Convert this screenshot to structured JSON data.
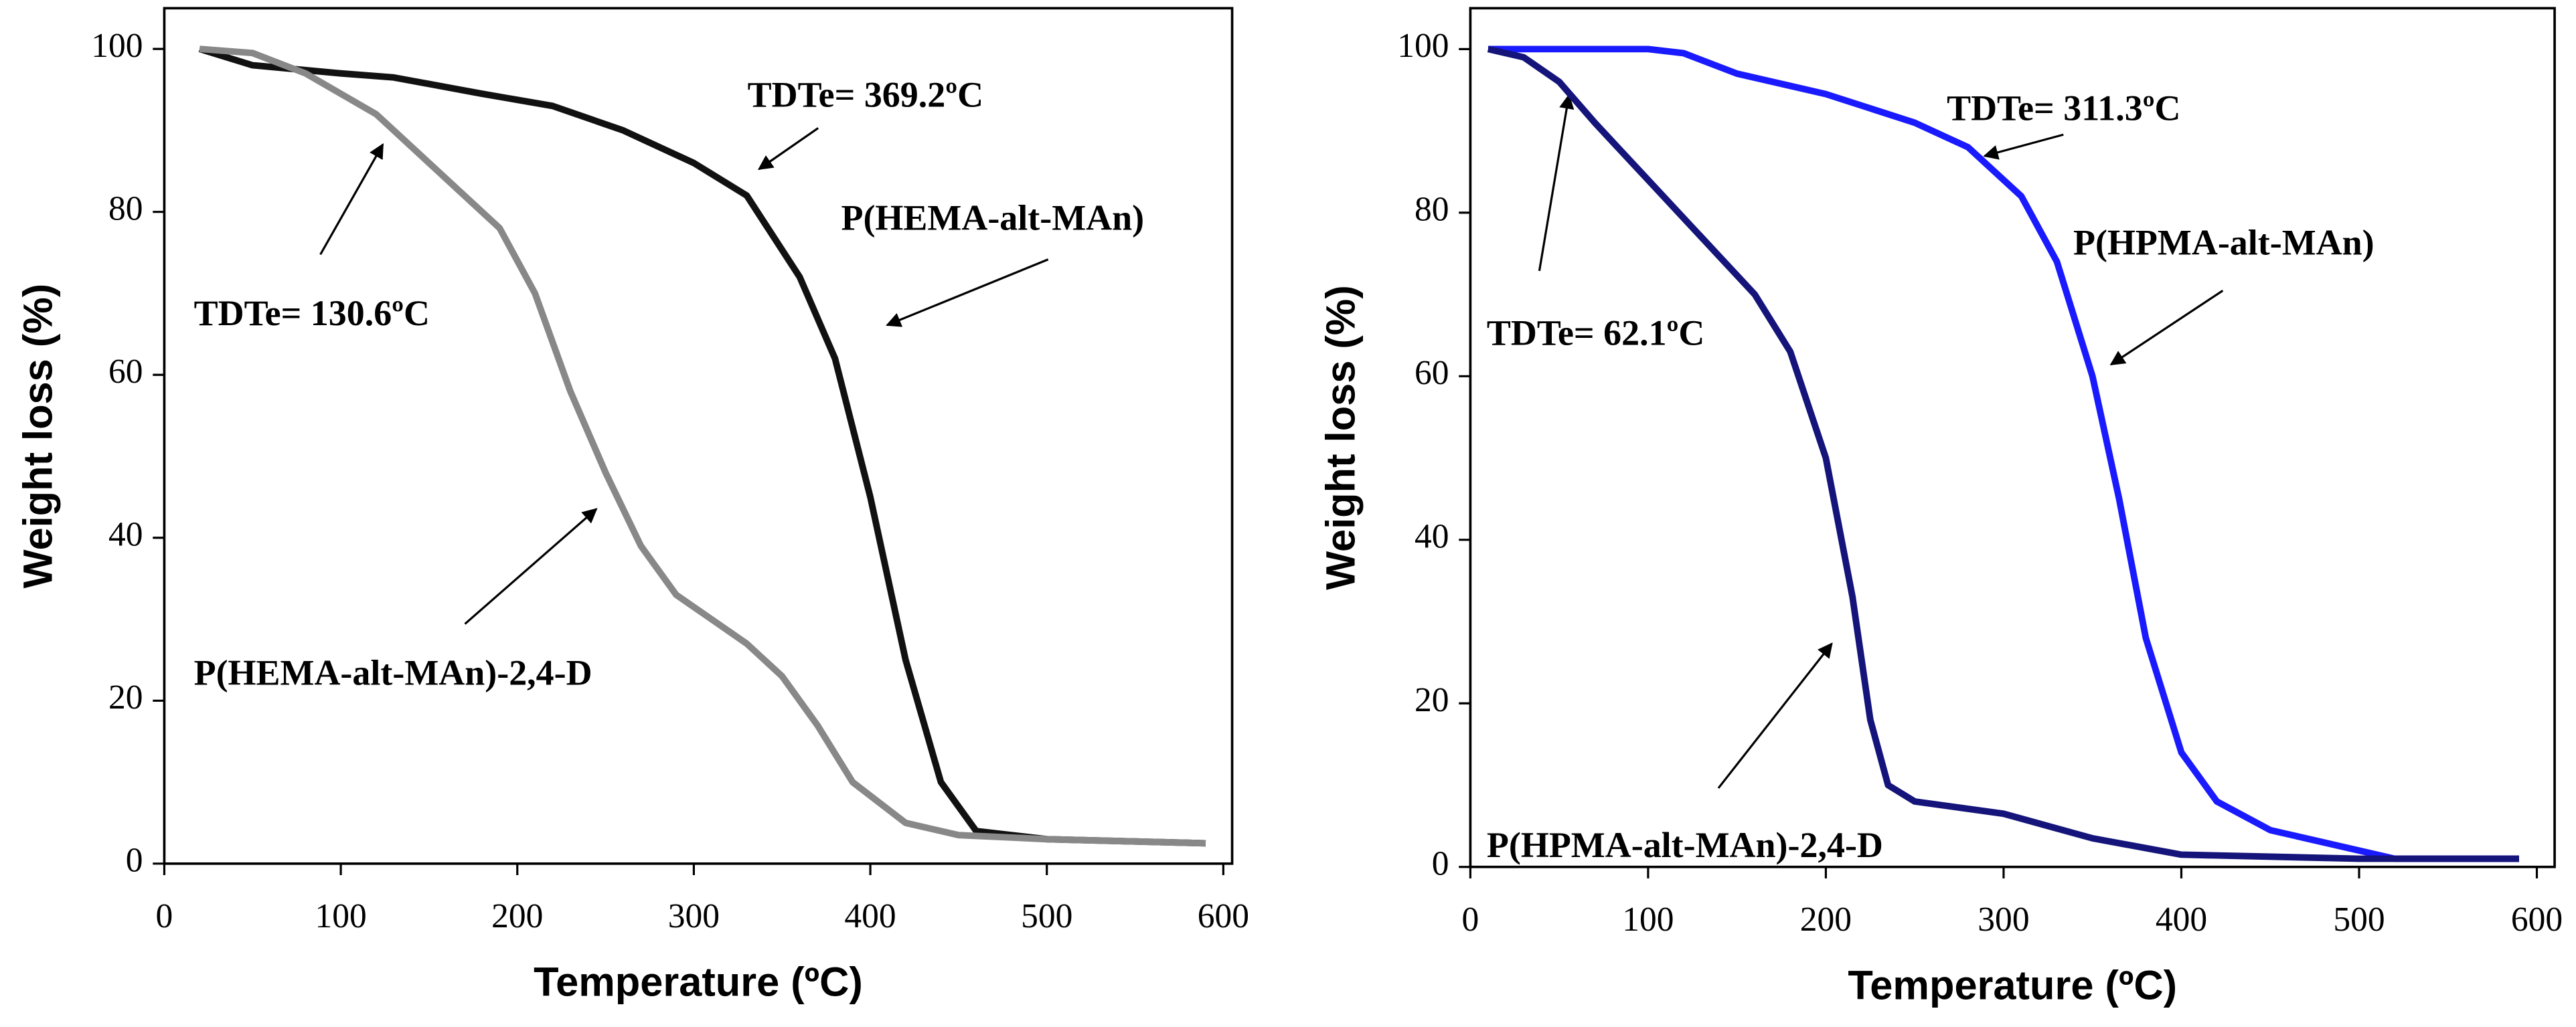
{
  "chart_data": [
    {
      "type": "line",
      "xlabel": "Temperature (ºC)",
      "ylabel": "Weight loss (%)",
      "xlim": [
        0,
        605
      ],
      "ylim": [
        0,
        105
      ],
      "xticks": [
        0,
        100,
        200,
        300,
        400,
        500,
        600
      ],
      "yticks": [
        0,
        20,
        40,
        60,
        80,
        100
      ],
      "series": [
        {
          "name": "P(HEMA-alt-MAn)",
          "color": "#111111",
          "x": [
            20,
            50,
            100,
            130,
            180,
            220,
            260,
            300,
            330,
            360,
            380,
            400,
            420,
            440,
            460,
            500,
            590
          ],
          "values": [
            100,
            98,
            97,
            96.5,
            94.5,
            93,
            90,
            86,
            82,
            72,
            62,
            45,
            25,
            10,
            4,
            3,
            2.5
          ]
        },
        {
          "name": "P(HEMA-alt-MAn)-2,4-D",
          "color": "#888888",
          "x": [
            20,
            50,
            80,
            120,
            160,
            190,
            210,
            230,
            250,
            270,
            290,
            310,
            330,
            350,
            370,
            390,
            420,
            450,
            500,
            590
          ],
          "values": [
            100,
            99.5,
            97,
            92,
            84,
            78,
            70,
            58,
            48,
            39,
            33,
            30,
            27,
            23,
            17,
            10,
            5,
            3.5,
            3,
            2.5
          ]
        }
      ],
      "annotations": [
        "TDTe= 369.2ºC",
        "TDTe= 130.6ºC"
      ]
    },
    {
      "type": "line",
      "xlabel": "Temperature (ºC)",
      "ylabel": "Weight loss (%)",
      "xlim": [
        0,
        610
      ],
      "ylim": [
        0,
        105
      ],
      "xticks": [
        0,
        100,
        200,
        300,
        400,
        500,
        600
      ],
      "yticks": [
        0,
        20,
        40,
        60,
        80,
        100
      ],
      "series": [
        {
          "name": "P(HPMA-alt-MAn)",
          "color": "#1a1aff",
          "x": [
            10,
            100,
            120,
            150,
            200,
            250,
            280,
            310,
            330,
            350,
            365,
            380,
            400,
            420,
            450,
            480,
            520,
            590
          ],
          "values": [
            100,
            100,
            99.5,
            97,
            94.5,
            91,
            88,
            82,
            74,
            60,
            45,
            28,
            14,
            8,
            4.5,
            3,
            1,
            1
          ]
        },
        {
          "name": "P(HPMA-alt-MAn)-2,4-D",
          "color": "#14147a",
          "x": [
            10,
            30,
            50,
            70,
            100,
            130,
            160,
            180,
            200,
            215,
            225,
            235,
            250,
            300,
            350,
            400,
            500,
            590
          ],
          "values": [
            100,
            99,
            96,
            91,
            84,
            77,
            70,
            63,
            50,
            33,
            18,
            10,
            8,
            6.5,
            3.5,
            1.5,
            1,
            1
          ]
        }
      ],
      "annotations": [
        "TDTe= 311.3ºC",
        "TDTe= 62.1ºC"
      ]
    }
  ]
}
